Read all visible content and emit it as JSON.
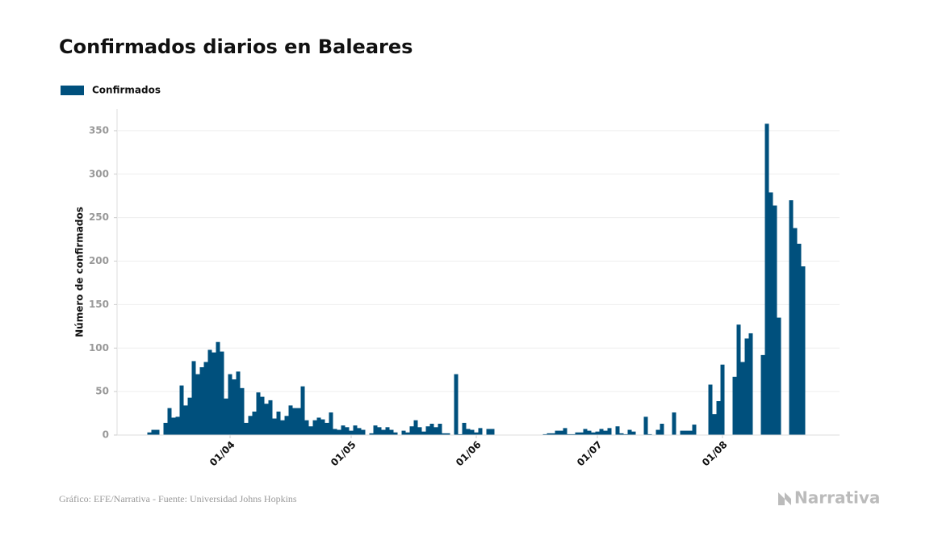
{
  "chart_data": {
    "type": "bar",
    "title": "Confirmados diarios en Baleares",
    "ylabel": "Número de confirmados",
    "source": "Gráfico: EFE/Narrativa - Fuente: Universidad Johns Hopkins",
    "brand": "Narrativa",
    "legend": "top-left",
    "grid": true,
    "ylim": [
      0,
      375
    ],
    "yticks": [
      0,
      50,
      100,
      150,
      200,
      250,
      300,
      350
    ],
    "categories": [
      null,
      null,
      null,
      null,
      null,
      null,
      null,
      null,
      null,
      null,
      null,
      null,
      null,
      null,
      null,
      null,
      null,
      null,
      null,
      null,
      "01/04",
      null,
      null,
      null,
      null,
      null,
      null,
      null,
      null,
      null,
      null,
      null,
      null,
      null,
      null,
      null,
      null,
      null,
      null,
      null,
      null,
      null,
      null,
      null,
      null,
      null,
      null,
      null,
      null,
      null,
      "01/05",
      null,
      null,
      null,
      null,
      null,
      null,
      null,
      null,
      null,
      null,
      null,
      null,
      null,
      null,
      null,
      null,
      null,
      null,
      null,
      null,
      null,
      null,
      null,
      null,
      null,
      null,
      null,
      null,
      null,
      null,
      "01/06",
      null,
      null,
      null,
      null,
      null,
      null,
      null,
      null,
      null,
      null,
      null,
      null,
      null,
      null,
      null,
      null,
      null,
      null,
      null,
      null,
      null,
      null,
      null,
      null,
      null,
      null,
      null,
      null,
      null,
      "01/07",
      null,
      null,
      null,
      null,
      null,
      null,
      null,
      null,
      null,
      null,
      null,
      null,
      null,
      null,
      null,
      null,
      null,
      null,
      null,
      null,
      null,
      null,
      null,
      null,
      null,
      null,
      null,
      null,
      null,
      null,
      "01/08",
      null,
      null,
      null,
      null,
      null,
      null,
      null,
      null,
      null,
      null,
      null,
      null,
      null,
      null,
      null,
      null,
      null,
      null,
      null,
      null
    ],
    "series": [
      {
        "name": "Confirmados",
        "color": "#00507d",
        "values": [
          3,
          6,
          6,
          0,
          14,
          31,
          20,
          21,
          57,
          34,
          43,
          85,
          70,
          78,
          84,
          98,
          95,
          107,
          96,
          42,
          70,
          64,
          73,
          54,
          14,
          22,
          27,
          49,
          44,
          36,
          40,
          19,
          27,
          17,
          22,
          34,
          31,
          31,
          56,
          17,
          10,
          17,
          20,
          18,
          14,
          26,
          7,
          6,
          11,
          9,
          5,
          11,
          8,
          6,
          0,
          2,
          11,
          9,
          6,
          9,
          6,
          3,
          0,
          5,
          3,
          10,
          17,
          9,
          4,
          10,
          13,
          9,
          13,
          2,
          2,
          0,
          70,
          1,
          14,
          7,
          6,
          3,
          8,
          0,
          7,
          7,
          0,
          0,
          0,
          0,
          0,
          0,
          0,
          0,
          0,
          0,
          0,
          0,
          1,
          2,
          2,
          5,
          5,
          8,
          1,
          1,
          3,
          3,
          7,
          5,
          3,
          4,
          7,
          5,
          8,
          0,
          10,
          2,
          1,
          6,
          4,
          0,
          0,
          21,
          1,
          0,
          6,
          13,
          0,
          0,
          26,
          0,
          5,
          5,
          5,
          12,
          0,
          0,
          0,
          58,
          24,
          39,
          81,
          0,
          0,
          67,
          127,
          84,
          111,
          117,
          0,
          0,
          92,
          358,
          279,
          264,
          135,
          0,
          0,
          270,
          238,
          220,
          194
        ]
      }
    ]
  }
}
